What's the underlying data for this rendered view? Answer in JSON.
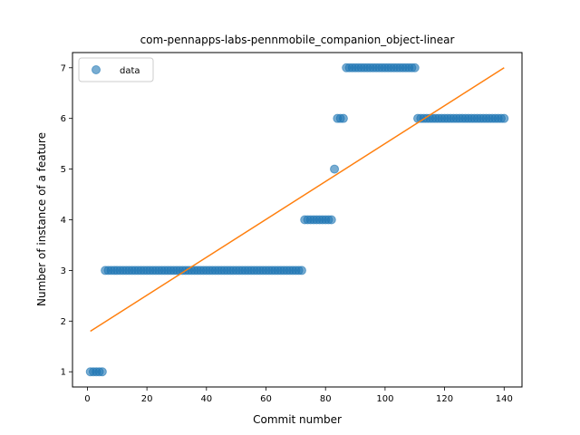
{
  "chart_data": {
    "type": "scatter",
    "title": "com-pennapps-labs-pennmobile_companion_object-linear",
    "xlabel": "Commit number",
    "ylabel": "Number of instance of a feature",
    "xlim": [
      -5,
      146
    ],
    "ylim": [
      0.7,
      7.3
    ],
    "xticks": [
      0,
      20,
      40,
      60,
      80,
      100,
      120,
      140
    ],
    "yticks": [
      1,
      2,
      3,
      4,
      5,
      6,
      7
    ],
    "legend": {
      "position": "upper-left",
      "entries": [
        "data"
      ]
    },
    "grid": false,
    "colors": {
      "data": "#1f77b4",
      "fit": "#ff7f0e"
    },
    "series": [
      {
        "name": "data",
        "kind": "scatter",
        "segments": [
          {
            "x_from": 1,
            "x_to": 5,
            "y": 1
          },
          {
            "x_from": 6,
            "x_to": 72,
            "y": 3
          },
          {
            "x_from": 73,
            "x_to": 82,
            "y": 4
          },
          {
            "x_from": 83,
            "x_to": 83,
            "y": 5
          },
          {
            "x_from": 84,
            "x_to": 86,
            "y": 6
          },
          {
            "x_from": 87,
            "x_to": 110,
            "y": 7
          },
          {
            "x_from": 111,
            "x_to": 140,
            "y": 6
          }
        ]
      },
      {
        "kind": "line",
        "x": [
          1,
          140
        ],
        "y": [
          1.8,
          7.0
        ]
      }
    ]
  }
}
